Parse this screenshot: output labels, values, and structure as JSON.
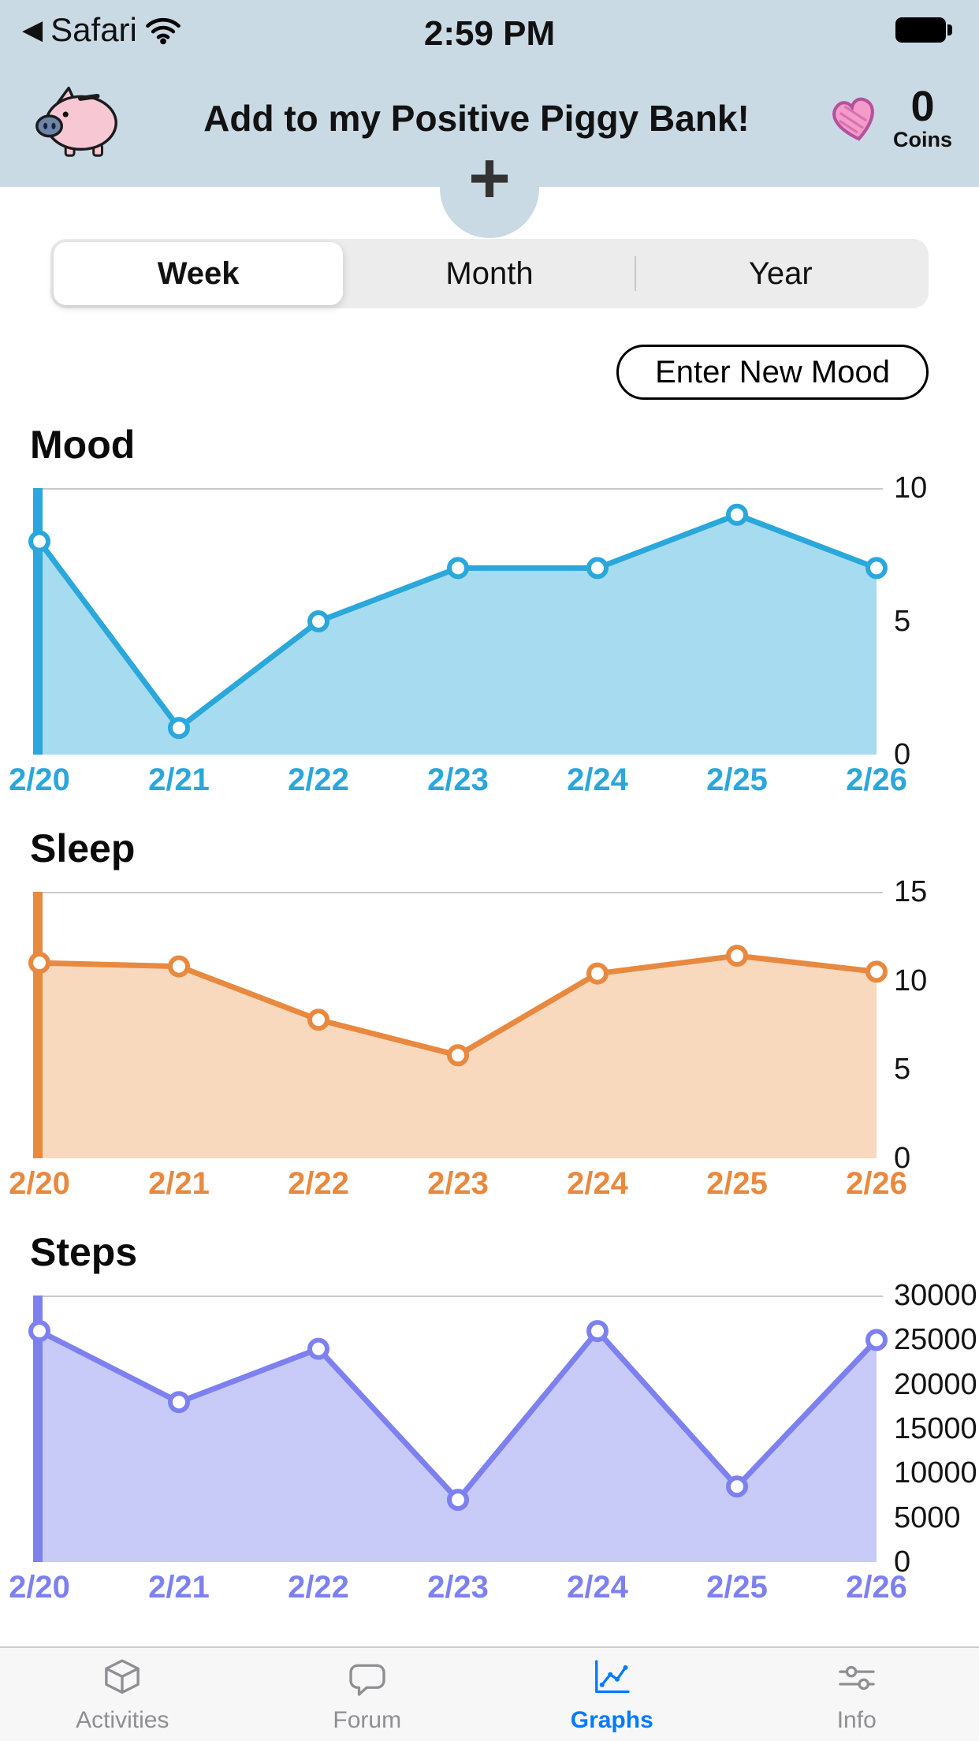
{
  "status_bar": {
    "back_label": "Safari",
    "time": "2:59 PM"
  },
  "header": {
    "title": "Add to my Positive Piggy Bank!",
    "coins_value": "0",
    "coins_label": "Coins",
    "background_color": "#C9DAE4"
  },
  "controls": {
    "segments": [
      {
        "label": "Week",
        "selected": true
      },
      {
        "label": "Month",
        "selected": false
      },
      {
        "label": "Year",
        "selected": false
      }
    ],
    "enter_new_mood_label": "Enter New Mood"
  },
  "chart_data": [
    {
      "type": "area",
      "title": "Mood",
      "color": "#2AA7DB",
      "fill": "#A7DBF0",
      "categories": [
        "2/20",
        "2/21",
        "2/22",
        "2/23",
        "2/24",
        "2/25",
        "2/26"
      ],
      "values": [
        8,
        1,
        5,
        7,
        7,
        9,
        7
      ],
      "ylim": [
        0,
        10
      ],
      "yticks": [
        0,
        5,
        10
      ],
      "legend": "none",
      "grid": "top-line-only"
    },
    {
      "type": "area",
      "title": "Sleep",
      "color": "#E8893F",
      "fill": "#F8D9BE",
      "categories": [
        "2/20",
        "2/21",
        "2/22",
        "2/23",
        "2/24",
        "2/25",
        "2/26"
      ],
      "values": [
        11,
        10.8,
        7.8,
        5.8,
        10.4,
        11.4,
        10.5
      ],
      "ylim": [
        0,
        15
      ],
      "yticks": [
        0,
        5,
        10,
        15
      ],
      "legend": "none",
      "grid": "top-line-only"
    },
    {
      "type": "area",
      "title": "Steps",
      "color": "#7D81F0",
      "fill": "#C8CAF8",
      "categories": [
        "2/20",
        "2/21",
        "2/22",
        "2/23",
        "2/24",
        "2/25",
        "2/26"
      ],
      "values": [
        26000,
        18000,
        24000,
        7000,
        26000,
        8500,
        25000
      ],
      "ylim": [
        0,
        30000
      ],
      "yticks": [
        0,
        5000,
        10000,
        15000,
        20000,
        25000,
        30000
      ],
      "legend": "none",
      "grid": "top-line-only"
    }
  ],
  "tab_bar": {
    "active_color": "#007AFF",
    "items": [
      {
        "label": "Activities",
        "icon": "cube-icon",
        "active": false
      },
      {
        "label": "Forum",
        "icon": "speech-bubble-icon",
        "active": false
      },
      {
        "label": "Graphs",
        "icon": "line-chart-icon",
        "active": true
      },
      {
        "label": "Info",
        "icon": "sliders-icon",
        "active": false
      }
    ]
  }
}
